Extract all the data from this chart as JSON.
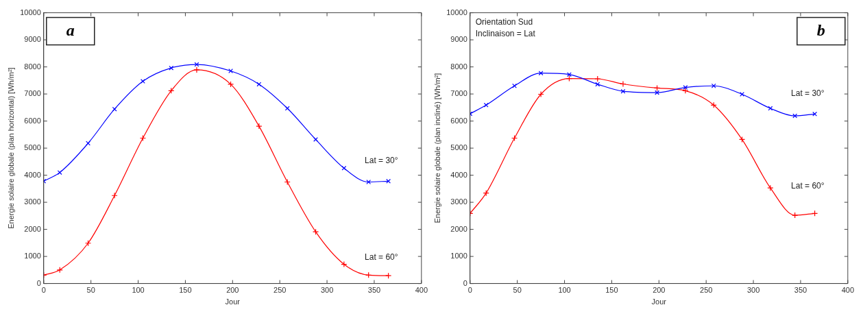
{
  "chart_data": [
    {
      "type": "line",
      "title": "a",
      "xlabel": "Jour",
      "ylabel": "Energie solaire globale (plan horizontal) [Wh/m²]",
      "xlim": [
        0,
        400
      ],
      "xticks": [
        0,
        50,
        100,
        150,
        200,
        250,
        300,
        350,
        400
      ],
      "ylim": [
        0,
        10000
      ],
      "yticks": [
        0,
        1000,
        2000,
        3000,
        4000,
        5000,
        6000,
        7000,
        8000,
        9000,
        10000
      ],
      "grid": false,
      "legend": false,
      "marker": "cross",
      "line_style": "solid",
      "x": [
        0,
        17,
        47,
        75,
        105,
        135,
        162,
        198,
        228,
        258,
        288,
        318,
        344,
        365
      ],
      "series": [
        {
          "name": "Lat = 30°",
          "color": "#0000ff",
          "values": [
            3780,
            4100,
            5180,
            6440,
            7470,
            7960,
            8090,
            7850,
            7360,
            6470,
            5320,
            4260,
            3750,
            3780
          ]
        },
        {
          "name": "Lat = 60°",
          "color": "#ff0000",
          "values": [
            310,
            500,
            1490,
            3250,
            5370,
            7120,
            7890,
            7360,
            5810,
            3750,
            1910,
            710,
            310,
            290
          ]
        }
      ]
    },
    {
      "type": "line",
      "title": "b",
      "xlabel": "Jour",
      "ylabel": "Energie solaire globale (plan incliné) [Wh/m²]",
      "annotations": [
        "Orientation Sud",
        "Inclinaison = Lat"
      ],
      "xlim": [
        0,
        400
      ],
      "xticks": [
        0,
        50,
        100,
        150,
        200,
        250,
        300,
        350,
        400
      ],
      "ylim": [
        0,
        10000
      ],
      "yticks": [
        0,
        1000,
        2000,
        3000,
        4000,
        5000,
        6000,
        7000,
        8000,
        9000,
        10000
      ],
      "grid": false,
      "legend": false,
      "marker": "cross",
      "line_style": "solid",
      "x": [
        0,
        17,
        47,
        75,
        105,
        135,
        162,
        198,
        228,
        258,
        288,
        318,
        344,
        365
      ],
      "series": [
        {
          "name": "Lat = 30°",
          "color": "#0000ff",
          "values": [
            6270,
            6590,
            7300,
            7770,
            7720,
            7360,
            7100,
            7050,
            7240,
            7300,
            6990,
            6470,
            6190,
            6260
          ]
        },
        {
          "name": "Lat = 60°",
          "color": "#ff0000",
          "values": [
            2590,
            3340,
            5370,
            6990,
            7570,
            7560,
            7370,
            7220,
            7120,
            6590,
            5320,
            3530,
            2520,
            2590
          ]
        }
      ]
    }
  ]
}
